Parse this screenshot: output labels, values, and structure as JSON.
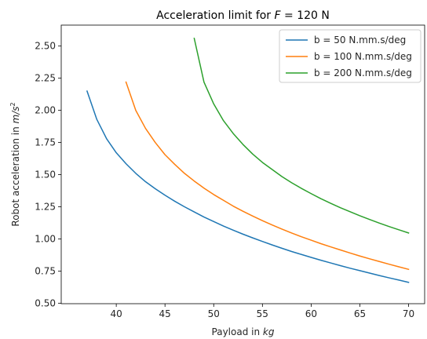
{
  "chart_data": {
    "type": "line",
    "title": "Acceleration limit for F = 120 N",
    "title_parts": [
      "Acceleration limit for ",
      "F",
      " = 120 N"
    ],
    "xlabel": "Payload in kg",
    "xlabel_parts": [
      "Payload in ",
      "kg"
    ],
    "ylabel": "Robot acceleration in m/s²",
    "ylabel_parts": [
      "Robot acceleration in ",
      "m/s",
      "2"
    ],
    "xlim": [
      34.35,
      71.65
    ],
    "ylim": [
      0.496,
      2.663
    ],
    "xticks": [
      40,
      45,
      50,
      55,
      60,
      65,
      70
    ],
    "xtick_labels": [
      "40",
      "45",
      "50",
      "55",
      "60",
      "65",
      "70"
    ],
    "yticks": [
      0.5,
      0.75,
      1.0,
      1.25,
      1.5,
      1.75,
      2.0,
      2.25,
      2.5
    ],
    "ytick_labels": [
      "0.50",
      "0.75",
      "1.00",
      "1.25",
      "1.50",
      "1.75",
      "2.00",
      "2.25",
      "2.50"
    ],
    "grid": false,
    "legend_position": "top-right",
    "series": [
      {
        "name": "b = 50 N.mm.s/deg",
        "color": "#1f77b4",
        "x": [
          37,
          38,
          39,
          40,
          41,
          42,
          43,
          44,
          45,
          46,
          47,
          48,
          49,
          50,
          51,
          52,
          53,
          54,
          55,
          56,
          57,
          58,
          59,
          60,
          61,
          62,
          63,
          64,
          65,
          66,
          67,
          68,
          69,
          70
        ],
        "y": [
          2.15,
          1.93,
          1.78,
          1.67,
          1.585,
          1.51,
          1.445,
          1.39,
          1.34,
          1.293,
          1.25,
          1.21,
          1.17,
          1.135,
          1.1,
          1.068,
          1.037,
          1.008,
          0.98,
          0.953,
          0.927,
          0.902,
          0.879,
          0.856,
          0.834,
          0.813,
          0.792,
          0.772,
          0.753,
          0.734,
          0.715,
          0.697,
          0.68,
          0.662
        ]
      },
      {
        "name": "b = 100 N.mm.s/deg",
        "color": "#ff7f0e",
        "x": [
          41,
          42,
          43,
          44,
          45,
          46,
          47,
          48,
          49,
          50,
          51,
          52,
          53,
          54,
          55,
          56,
          57,
          58,
          59,
          60,
          61,
          62,
          63,
          64,
          65,
          66,
          67,
          68,
          69,
          70
        ],
        "y": [
          2.22,
          2.0,
          1.86,
          1.75,
          1.655,
          1.58,
          1.51,
          1.45,
          1.395,
          1.345,
          1.3,
          1.255,
          1.215,
          1.178,
          1.142,
          1.108,
          1.076,
          1.046,
          1.017,
          0.99,
          0.963,
          0.938,
          0.914,
          0.89,
          0.867,
          0.845,
          0.824,
          0.803,
          0.783,
          0.763
        ]
      },
      {
        "name": "b = 200 N.mm.s/deg",
        "color": "#2ca02c",
        "x": [
          48,
          49,
          50,
          51,
          52,
          53,
          54,
          55,
          56,
          57,
          58,
          59,
          60,
          61,
          62,
          63,
          64,
          65,
          66,
          67,
          68,
          69,
          70
        ],
        "y": [
          2.56,
          2.22,
          2.05,
          1.92,
          1.82,
          1.735,
          1.66,
          1.595,
          1.54,
          1.485,
          1.437,
          1.393,
          1.352,
          1.313,
          1.277,
          1.243,
          1.211,
          1.18,
          1.151,
          1.123,
          1.096,
          1.071,
          1.046
        ]
      }
    ]
  }
}
